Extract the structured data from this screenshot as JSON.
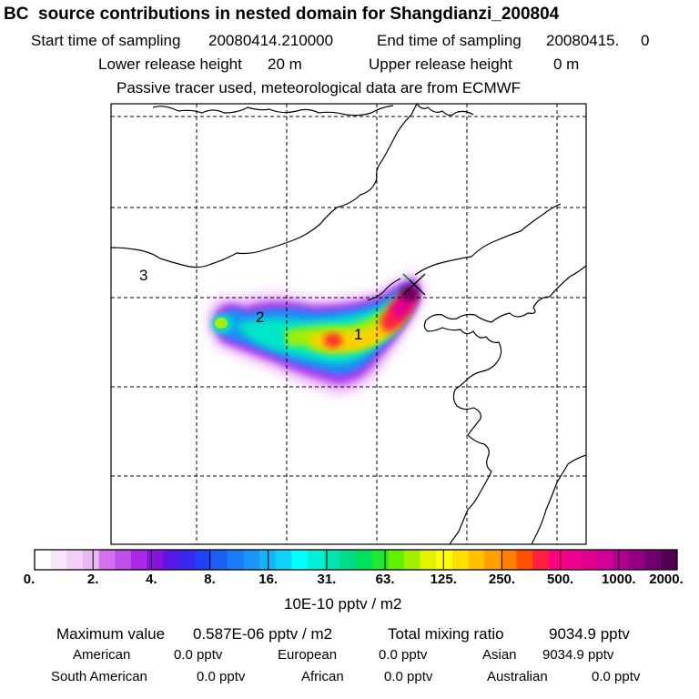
{
  "header": {
    "title": "BC  source contributions in nested domain for Shangdianzi_200804",
    "start_label": "Start time of sampling",
    "start_value": "20080414.210000",
    "end_label": "End time of sampling",
    "end_value": "20080415.     0",
    "lower_label": "Lower release height",
    "lower_value": "20 m",
    "upper_label": "Upper release height",
    "upper_value": "0 m",
    "note": "Passive tracer used, meteorological data are from ECMWF"
  },
  "map_labels": [
    "1",
    "2",
    "3"
  ],
  "chart_data": {
    "type": "heatmap",
    "colorbar": {
      "tick_labels": [
        "0.",
        "2.",
        "4.",
        "8.",
        "16.",
        "31.",
        "63.",
        "125.",
        "250.",
        "500.",
        "1000.",
        "2000."
      ],
      "colors": [
        "#ffffff",
        "#f9e8fb",
        "#f3d0f7",
        "#eab8f4",
        "#d670ee",
        "#c050ec",
        "#a828e6",
        "#8810e0",
        "#5a18e6",
        "#3a28f0",
        "#1e42f4",
        "#1c60f6",
        "#1a7cf8",
        "#1a96fa",
        "#14b4fa",
        "#10d2fa",
        "#00ffff",
        "#00f0d8",
        "#00e4b0",
        "#00dc88",
        "#00e060",
        "#20e830",
        "#60f000",
        "#a0f000",
        "#e0f400",
        "#ffff00",
        "#ffe000",
        "#ffc000",
        "#ffa000",
        "#ff8000",
        "#ff5000",
        "#ff2040",
        "#ff0080",
        "#f0008c",
        "#e00090",
        "#d00098",
        "#b00090",
        "#900080",
        "#700070",
        "#500050"
      ],
      "unit": "10E-10 pptv / m2"
    },
    "receptor": "Shangdianzi"
  },
  "summary": {
    "max_label": "Maximum value",
    "max_value": "0.587E-06 pptv / m2",
    "total_label": "Total mixing ratio",
    "total_value": "9034.9 pptv",
    "regions": [
      {
        "name": "American",
        "value": "0.0 pptv"
      },
      {
        "name": "European",
        "value": "0.0 pptv"
      },
      {
        "name": "Asian",
        "value": "9034.9 pptv"
      },
      {
        "name": "South American",
        "value": "0.0 pptv"
      },
      {
        "name": "African",
        "value": "0.0 pptv"
      },
      {
        "name": "Australian",
        "value": "0.0 pptv"
      }
    ]
  }
}
